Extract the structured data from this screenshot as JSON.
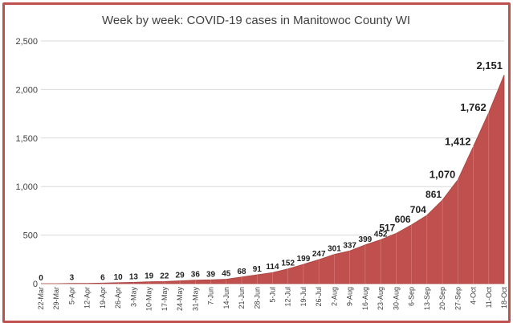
{
  "chart_data": {
    "type": "area",
    "title": "Week by week:  COVID-19 cases in Manitowoc County WI",
    "xlabel": "",
    "ylabel": "",
    "ylim": [
      0,
      2500
    ],
    "yticks": [
      "0",
      "500",
      "1,000",
      "1,500",
      "2,000",
      "2,500"
    ],
    "grid": true,
    "legend": "none",
    "color": "#c0504d",
    "categories": [
      "22-Mar",
      "29-Mar",
      "5-Apr",
      "12-Apr",
      "19-Apr",
      "26-Apr",
      "3-May",
      "10-May",
      "17-May",
      "24-May",
      "31-May",
      "7-Jun",
      "14-Jun",
      "21-Jun",
      "28-Jun",
      "5-Jul",
      "12-Jul",
      "19-Jul",
      "26-Jul",
      "2-Aug",
      "9-Aug",
      "16-Aug",
      "23-Aug",
      "30-Aug",
      "6-Sep",
      "13-Sep",
      "20-Sep",
      "27-Sep",
      "4-Oct",
      "11-Oct",
      "18-Oct"
    ],
    "values": [
      0,
      0,
      3,
      3,
      6,
      10,
      13,
      19,
      22,
      29,
      36,
      39,
      45,
      68,
      91,
      114,
      152,
      199,
      247,
      301,
      337,
      399,
      452,
      517,
      606,
      704,
      861,
      1070,
      1412,
      1762,
      2151
    ],
    "labels": [
      "0",
      "",
      "3",
      "",
      "6",
      "10",
      "13",
      "19",
      "22",
      "29",
      "36",
      "39",
      "45",
      "68",
      "91",
      "114",
      "152",
      "199",
      "247",
      "301",
      "337",
      "399",
      "452",
      "517",
      "606",
      "704",
      "861",
      "1,070",
      "1,412",
      "1,762",
      "2,151"
    ]
  }
}
